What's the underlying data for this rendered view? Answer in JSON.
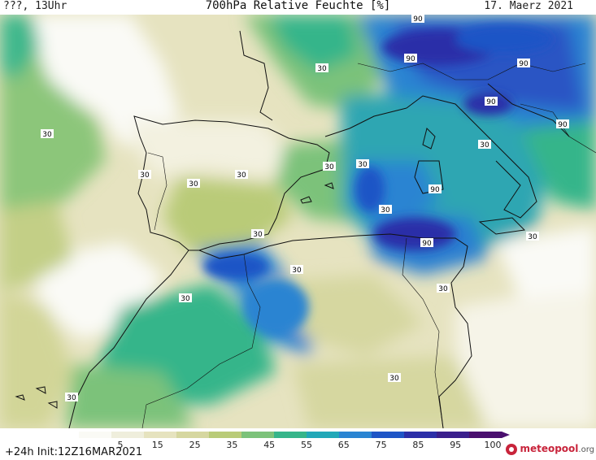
{
  "header": {
    "left": "???, 13Uhr",
    "title": "700hPa Relative Feuchte [%]",
    "date": "17. Maerz 2021"
  },
  "footer": {
    "run_info": "+24h  Init:12Z16MAR2021",
    "logo_text": "meteopool",
    "logo_suffix": ".org"
  },
  "legend": {
    "labels": [
      "5",
      "15",
      "25",
      "35",
      "45",
      "55",
      "65",
      "75",
      "85",
      "95",
      "100"
    ],
    "colors": [
      "#fafaf5",
      "#efeedc",
      "#e6e3bf",
      "#d6d7a0",
      "#b9cb78",
      "#7cc27a",
      "#36b58a",
      "#22a8b8",
      "#2a84d2",
      "#1f55c6",
      "#2c2fa8",
      "#3a1f8c",
      "#4a0f6e"
    ]
  },
  "contour_labels": [
    {
      "text": "90"
    },
    {
      "text": "90"
    },
    {
      "text": "90"
    },
    {
      "text": "90"
    },
    {
      "text": "90"
    },
    {
      "text": "90"
    },
    {
      "text": "90"
    },
    {
      "text": "30"
    },
    {
      "text": "30"
    },
    {
      "text": "30"
    },
    {
      "text": "30"
    },
    {
      "text": "30"
    },
    {
      "text": "30"
    },
    {
      "text": "30"
    },
    {
      "text": "30"
    },
    {
      "text": "30"
    },
    {
      "text": "30"
    },
    {
      "text": "30"
    },
    {
      "text": "30"
    },
    {
      "text": "30"
    },
    {
      "text": "30"
    },
    {
      "text": "30"
    },
    {
      "text": "30"
    }
  ]
}
